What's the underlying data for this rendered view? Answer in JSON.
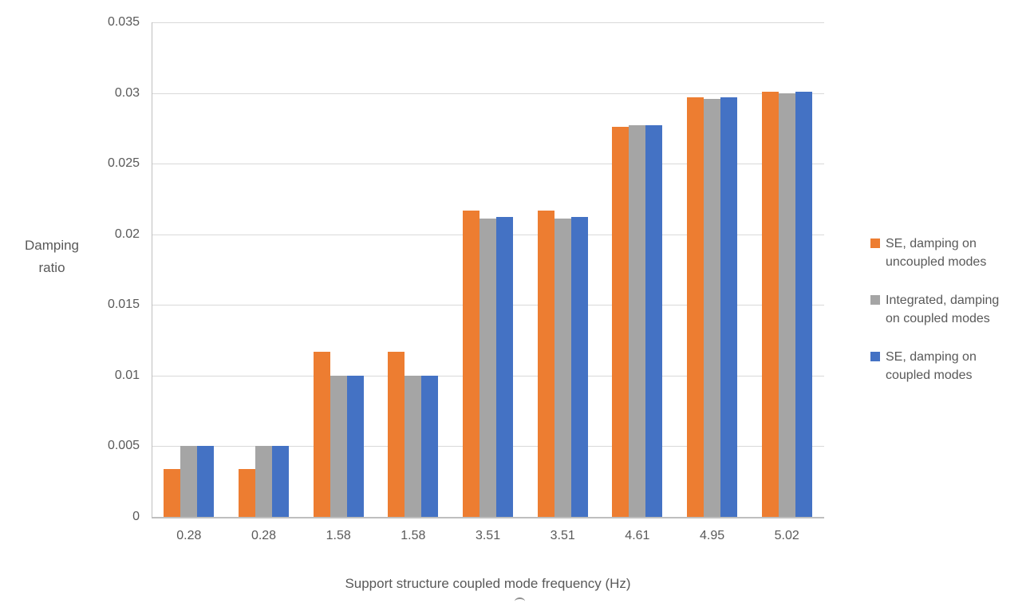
{
  "chart_data": {
    "type": "bar",
    "title": "",
    "categories": [
      "0.28",
      "0.28",
      "1.58",
      "1.58",
      "3.51",
      "3.51",
      "4.61",
      "4.95",
      "5.02"
    ],
    "series": [
      {
        "name": "SE, damping on uncoupled modes",
        "legend_lines": [
          "SE, damping on",
          "uncoupled modes"
        ],
        "color": "#ED7D31",
        "values": [
          0.0034,
          0.0034,
          0.0117,
          0.0117,
          0.0217,
          0.0217,
          0.0276,
          0.0297,
          0.0301
        ]
      },
      {
        "name": "Integrated, damping on coupled modes",
        "legend_lines": [
          "Integrated, damping",
          "on coupled modes"
        ],
        "color": "#A5A5A5",
        "values": [
          0.005,
          0.005,
          0.01,
          0.01,
          0.0211,
          0.0211,
          0.0277,
          0.0296,
          0.03
        ]
      },
      {
        "name": "SE, damping on coupled modes",
        "legend_lines": [
          "SE, damping on",
          "coupled modes"
        ],
        "color": "#4472C4",
        "values": [
          0.005,
          0.005,
          0.01,
          0.01,
          0.0212,
          0.0212,
          0.0277,
          0.0297,
          0.0301
        ]
      }
    ],
    "xlabel": "Support structure coupled mode frequency (Hz)",
    "ylabel": "Damping ratio",
    "ylabel_lines": [
      "Damping",
      "ratio"
    ],
    "ylim": [
      0,
      0.035
    ],
    "ytick_step": 0.005,
    "yticks": [
      "0.035",
      "0.03",
      "0.025",
      "0.02",
      "0.015",
      "0.01",
      "0.005",
      "0"
    ],
    "grid": true,
    "legend_position": "right",
    "colors": {
      "gridline": "#D9D9D9",
      "axis_line": "#BFBFBF",
      "text": "#595959"
    }
  }
}
